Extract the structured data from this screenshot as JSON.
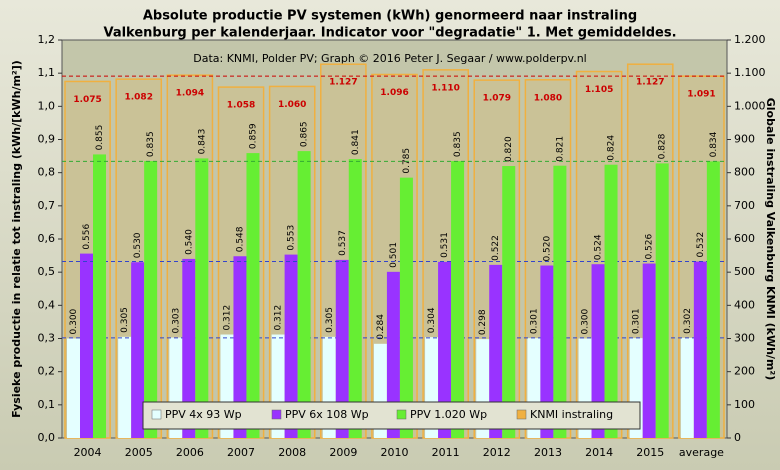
{
  "chart_data": {
    "type": "bar",
    "title": "Absolute productie PV systemen (kWh) genormeerd naar instraling",
    "subtitle": "Valkenburg per kalenderjaar. Indicator voor \"degradatie\" 1. Met gemiddeldes.",
    "annotation": "Data: KNMI, Polder PV; Graph © 2016 Peter J. Segaar / www.polderpv.nl",
    "ylabel": "Fysieke productie in relatie tot instraling (kWh/[kWh/m²])",
    "y2label": "Globale instraling Valkenburg KNMI (kWh/m²)",
    "categories": [
      "2004",
      "2005",
      "2006",
      "2007",
      "2008",
      "2009",
      "2010",
      "2011",
      "2012",
      "2013",
      "2014",
      "2015",
      "average"
    ],
    "series": [
      {
        "name": "PPV 4x 93 Wp",
        "color": "#e4ffff",
        "values": [
          0.3,
          0.305,
          0.303,
          0.312,
          0.312,
          0.305,
          0.284,
          0.304,
          0.298,
          0.301,
          0.3,
          0.301,
          0.302
        ],
        "value_labels": [
          "0.300",
          "0.305",
          "0.303",
          "0.312",
          "0.312",
          "0.305",
          "0.284",
          "0.304",
          "0.298",
          "0.301",
          "0.300",
          "0.301",
          "0.302"
        ]
      },
      {
        "name": "PPV 6x 108 Wp",
        "color": "#9933ff",
        "values": [
          0.556,
          0.53,
          0.54,
          0.548,
          0.553,
          0.537,
          0.501,
          0.531,
          0.522,
          0.52,
          0.524,
          0.526,
          0.532
        ],
        "value_labels": [
          "0.556",
          "0.530",
          "0.540",
          "0.548",
          "0.553",
          "0.537",
          "0.501",
          "0.531",
          "0.522",
          "0.520",
          "0.524",
          "0.526",
          "0.532"
        ]
      },
      {
        "name": "PPV 1.020 Wp",
        "color": "#66ee33",
        "values": [
          0.855,
          0.835,
          0.843,
          0.859,
          0.865,
          0.841,
          0.785,
          0.835,
          0.82,
          0.821,
          0.824,
          0.828,
          0.834
        ],
        "value_labels": [
          "0.855",
          "0.835",
          "0.843",
          "0.859",
          "0.865",
          "0.841",
          "0.785",
          "0.835",
          "0.820",
          "0.821",
          "0.824",
          "0.828",
          "0.834"
        ]
      },
      {
        "name": "KNMI instraling",
        "color": "#f0b040",
        "axis": "y2",
        "values": [
          1075,
          1082,
          1094,
          1058,
          1060,
          1127,
          1096,
          1110,
          1079,
          1080,
          1105,
          1127,
          1091
        ],
        "value_labels": [
          "1.075",
          "1.082",
          "1.094",
          "1.058",
          "1.060",
          "1.127",
          "1.096",
          "1.110",
          "1.079",
          "1.080",
          "1.105",
          "1.127",
          "1.091"
        ]
      }
    ],
    "ylim": [
      0,
      1.2
    ],
    "yticks": [
      {
        "value": 0,
        "label": "0,0"
      },
      {
        "value": 0.1,
        "label": "0,1"
      },
      {
        "value": 0.2,
        "label": "0,2"
      },
      {
        "value": 0.3,
        "label": "0,3"
      },
      {
        "value": 0.4,
        "label": "0,4"
      },
      {
        "value": 0.5,
        "label": "0,5"
      },
      {
        "value": 0.6,
        "label": "0,6"
      },
      {
        "value": 0.7,
        "label": "0,7"
      },
      {
        "value": 0.8,
        "label": "0,8"
      },
      {
        "value": 0.9,
        "label": "0,9"
      },
      {
        "value": 1.0,
        "label": "1,0"
      },
      {
        "value": 1.1,
        "label": "1,1"
      },
      {
        "value": 1.2,
        "label": "1,2"
      }
    ],
    "y2lim": [
      0,
      1200
    ],
    "y2ticks": [
      0,
      100,
      200,
      300,
      400,
      500,
      600,
      700,
      800,
      900,
      {
        "value": 1000,
        "label": "1.000"
      },
      {
        "value": 1100,
        "label": "1.100"
      },
      {
        "value": 1200,
        "label": "1.200"
      }
    ],
    "grid": false,
    "legend": "bottom"
  }
}
